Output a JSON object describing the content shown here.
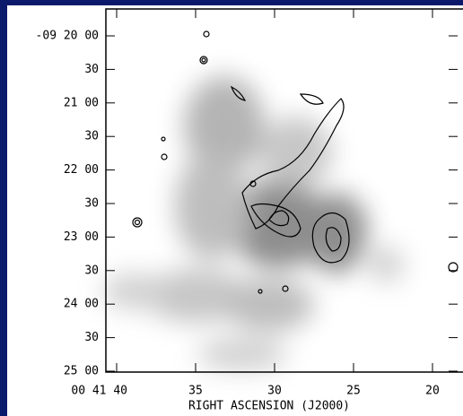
{
  "axes": {
    "x_label": "RIGHT ASCENSION (J2000)",
    "x_ticks": [
      "00 41 40",
      "35",
      "30",
      "25",
      "20"
    ],
    "y_ticks": [
      "-09 20 00",
      "30",
      "21 00",
      "30",
      "22 00",
      "30",
      "23 00",
      "30",
      "24 00",
      "30",
      "25 00"
    ]
  }
}
